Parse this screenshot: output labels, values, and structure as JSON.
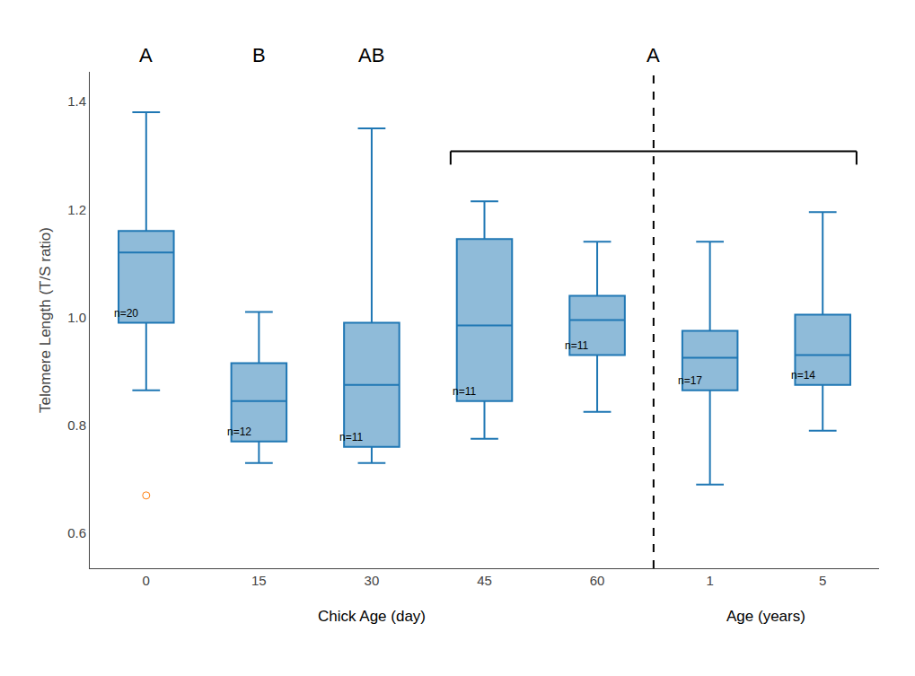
{
  "chart_data": {
    "type": "box",
    "categories": [
      "0",
      "15",
      "30",
      "45",
      "60",
      "1",
      "5"
    ],
    "ylabel": "Telomere Length (T/S ratio)",
    "x_groups": [
      {
        "label": "Chick Age (day)",
        "categories": [
          "0",
          "15",
          "30",
          "45",
          "60"
        ]
      },
      {
        "label": "Age (years)",
        "categories": [
          "1",
          "5"
        ]
      }
    ],
    "q1": [
      0.99,
      0.77,
      0.76,
      0.845,
      0.93,
      0.865,
      0.875
    ],
    "median": [
      1.12,
      0.845,
      0.875,
      0.985,
      0.995,
      0.925,
      0.93
    ],
    "q3": [
      1.16,
      0.915,
      0.99,
      1.145,
      1.04,
      0.975,
      1.005
    ],
    "whisker_low": [
      0.865,
      0.73,
      0.73,
      0.775,
      0.825,
      0.69,
      0.79
    ],
    "whisker_high": [
      1.38,
      1.01,
      1.35,
      1.215,
      1.14,
      1.14,
      1.195
    ],
    "outliers": [
      [
        0.67
      ],
      [],
      [],
      [],
      [],
      [],
      []
    ],
    "n_labels": [
      "n=20",
      "n=12",
      "n=11",
      "n=11",
      "n=11",
      "n=17",
      "n=14"
    ],
    "group_labels": [
      {
        "label": "A",
        "categories": [
          "0"
        ]
      },
      {
        "label": "B",
        "categories": [
          "15"
        ]
      },
      {
        "label": "AB",
        "categories": [
          "30"
        ]
      },
      {
        "label": "A",
        "categories": [
          "45",
          "60",
          "1",
          "5"
        ]
      }
    ],
    "ylim": [
      0.535,
      1.455
    ],
    "yticks": [
      0.6,
      0.8,
      {
        "value": 1.0,
        "label": "1.0"
      },
      1.2,
      1.4
    ],
    "grid": false
  }
}
